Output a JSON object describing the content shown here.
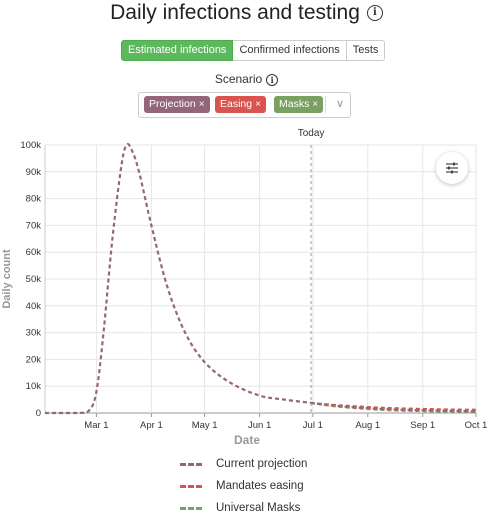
{
  "header": {
    "title": "Daily infections and testing",
    "info_icon": "info-icon"
  },
  "tabs": [
    {
      "label": "Estimated infections",
      "active": true
    },
    {
      "label": "Confirmed infections",
      "active": false
    },
    {
      "label": "Tests",
      "active": false
    }
  ],
  "scenario": {
    "label": "Scenario",
    "chips": [
      {
        "label": "Projection",
        "color": "#95667a"
      },
      {
        "label": "Easing",
        "color": "#d9534f"
      },
      {
        "label": "Masks",
        "color": "#7aa160"
      }
    ],
    "remove_glyph": "×"
  },
  "chart_data": {
    "type": "line",
    "xlabel": "Date",
    "ylabel": "Daily count",
    "ylim": [
      0,
      100000
    ],
    "y_ticks": [
      0,
      10000,
      20000,
      30000,
      40000,
      50000,
      60000,
      70000,
      80000,
      90000,
      100000
    ],
    "y_tick_labels": [
      "0",
      "10k",
      "20k",
      "30k",
      "40k",
      "50k",
      "60k",
      "70k",
      "80k",
      "90k",
      "100k"
    ],
    "x_ticks": [
      "Mar 1",
      "Apr 1",
      "May 1",
      "Jun 1",
      "Jul 1",
      "Aug 1",
      "Sep 1",
      "Oct 1"
    ],
    "xlim": [
      "2020-02-01",
      "2020-10-01"
    ],
    "grid": true,
    "annotations": [
      {
        "label": "Today",
        "x": "2020-06-30"
      }
    ],
    "series": [
      {
        "name": "Current projection",
        "color": "#95667a",
        "points": [
          [
            "2020-02-01",
            0
          ],
          [
            "2020-02-20",
            0
          ],
          [
            "2020-02-26",
            1000
          ],
          [
            "2020-03-01",
            8000
          ],
          [
            "2020-03-05",
            30000
          ],
          [
            "2020-03-10",
            65000
          ],
          [
            "2020-03-15",
            92000
          ],
          [
            "2020-03-18",
            100000
          ],
          [
            "2020-03-21",
            98000
          ],
          [
            "2020-03-25",
            90000
          ],
          [
            "2020-04-01",
            70000
          ],
          [
            "2020-04-10",
            47000
          ],
          [
            "2020-04-20",
            30000
          ],
          [
            "2020-05-01",
            19000
          ],
          [
            "2020-05-15",
            11500
          ],
          [
            "2020-06-01",
            6500
          ],
          [
            "2020-06-15",
            5000
          ],
          [
            "2020-07-01",
            3700
          ],
          [
            "2020-07-15",
            2600
          ],
          [
            "2020-08-01",
            1800
          ],
          [
            "2020-08-15",
            1300
          ],
          [
            "2020-09-01",
            1000
          ],
          [
            "2020-09-15",
            800
          ],
          [
            "2020-10-01",
            600
          ]
        ]
      },
      {
        "name": "Mandates easing",
        "color": "#d9534f",
        "points": [
          [
            "2020-06-30",
            3700
          ],
          [
            "2020-07-15",
            2900
          ],
          [
            "2020-08-01",
            2200
          ],
          [
            "2020-08-15",
            1800
          ],
          [
            "2020-09-01",
            1500
          ],
          [
            "2020-09-15",
            1300
          ],
          [
            "2020-10-01",
            1200
          ]
        ]
      },
      {
        "name": "Universal Masks",
        "color": "#7aa160",
        "points": [
          [
            "2020-06-30",
            3700
          ],
          [
            "2020-07-15",
            2400
          ],
          [
            "2020-08-01",
            1500
          ],
          [
            "2020-08-15",
            1000
          ],
          [
            "2020-09-01",
            700
          ],
          [
            "2020-09-15",
            500
          ],
          [
            "2020-10-01",
            400
          ]
        ]
      }
    ]
  }
}
